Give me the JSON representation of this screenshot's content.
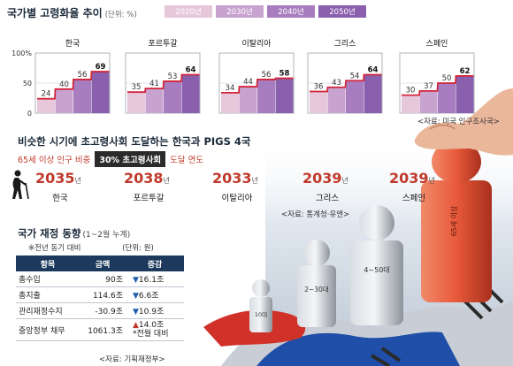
{
  "section1": {
    "title": "국가별 고령화율 추이",
    "unit": "(단위: %)",
    "legend": [
      "2020년",
      "2030년",
      "2040년",
      "2050년"
    ],
    "legend_colors": [
      "#e7c7da",
      "#c9a3cf",
      "#a77dbf",
      "#8a5fae"
    ],
    "source": "<자료: 미국 인구조사국>"
  },
  "chart_data": {
    "type": "bar",
    "y_ticks": [
      "100%",
      "50",
      "0"
    ],
    "ylim": [
      0,
      100
    ],
    "series_names": [
      "2020년",
      "2030년",
      "2040년",
      "2050년"
    ],
    "groups": [
      {
        "name": "한국",
        "values": [
          24,
          40,
          56,
          69
        ]
      },
      {
        "name": "포르투갈",
        "values": [
          35,
          41,
          53,
          64
        ]
      },
      {
        "name": "이탈리아",
        "values": [
          34,
          44,
          56,
          58
        ]
      },
      {
        "name": "그리스",
        "values": [
          36,
          43,
          54,
          64
        ]
      },
      {
        "name": "스페인",
        "values": [
          30,
          37,
          50,
          62
        ]
      }
    ]
  },
  "section2": {
    "title": "비슷한 시기에 초고령사회 도달하는 한국과 PIGS 4국",
    "sub_left": "65세 이상 인구 비중",
    "sub_box": "30% 초고령사회",
    "sub_right": "도달 연도",
    "year_suffix": "년",
    "items": [
      {
        "year": "2035",
        "country": "한국"
      },
      {
        "year": "2038",
        "country": "포르투갈"
      },
      {
        "year": "2033",
        "country": "이탈리아"
      },
      {
        "year": "2039",
        "country": "그리스"
      },
      {
        "year": "2039",
        "country": "스페인"
      }
    ],
    "source": "<자료: 통계청·유엔>"
  },
  "section3": {
    "title": "국가 재정 동향",
    "period": "(1~2월 누계)",
    "note": "※전년 동기 대비",
    "unit": "(단위: 원)",
    "headers": [
      "항목",
      "금액",
      "증감"
    ],
    "rows": [
      {
        "item": "총수입",
        "amount": "90조",
        "mark": "▼",
        "change": "16.1조",
        "dir": "down"
      },
      {
        "item": "총지출",
        "amount": "114.6조",
        "mark": "▼",
        "change": "6.6조",
        "dir": "down"
      },
      {
        "item": "관리재정수지",
        "amount": "-30.9조",
        "mark": "▼",
        "change": "10.9조",
        "dir": "down"
      },
      {
        "item": "중앙정부 채무",
        "amount": "1061.3조",
        "mark": "▲",
        "change": "14.0조",
        "dir": "up",
        "extra": "*전월 대비"
      }
    ],
    "source": "<자료: 기획재정부>"
  },
  "illustration": {
    "figure_labels": [
      "65세 이상",
      "4~50대",
      "2~30대",
      "10대"
    ]
  }
}
